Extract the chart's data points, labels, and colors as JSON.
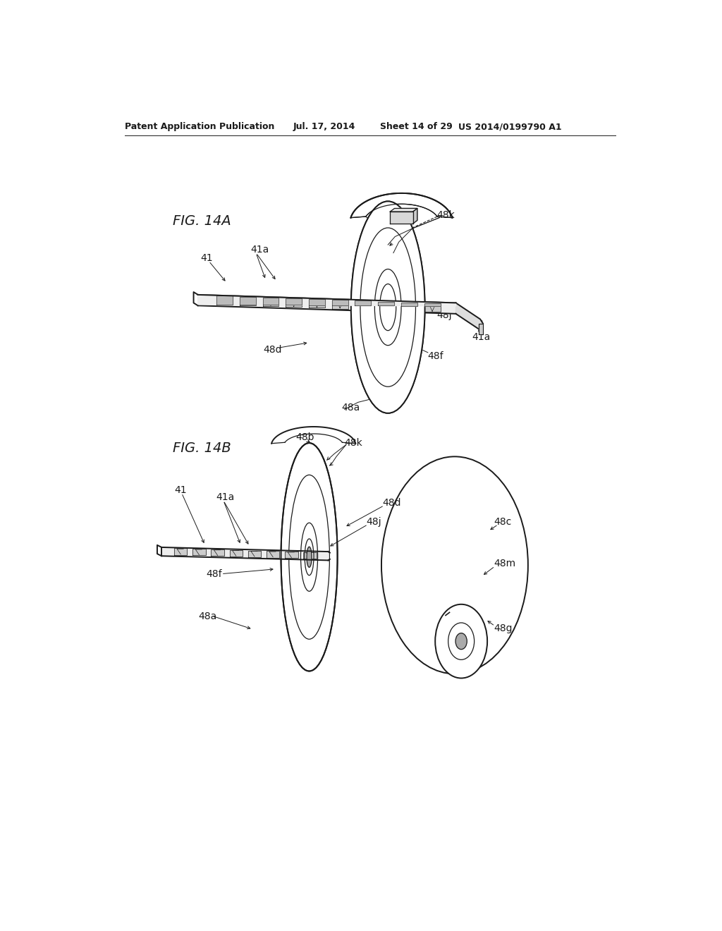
{
  "background_color": "#ffffff",
  "header_text": "Patent Application Publication",
  "header_date": "Jul. 17, 2014",
  "header_sheet": "Sheet 14 of 29",
  "header_patent": "US 2014/0199790 A1",
  "fig14a_label": "FIG. 14A",
  "fig14b_label": "FIG. 14B",
  "label_fontsize": 10,
  "header_fontsize": 9,
  "fig_label_fontsize": 14,
  "color_main": "#1a1a1a",
  "lw_main": 1.4,
  "lw_thin": 0.9
}
